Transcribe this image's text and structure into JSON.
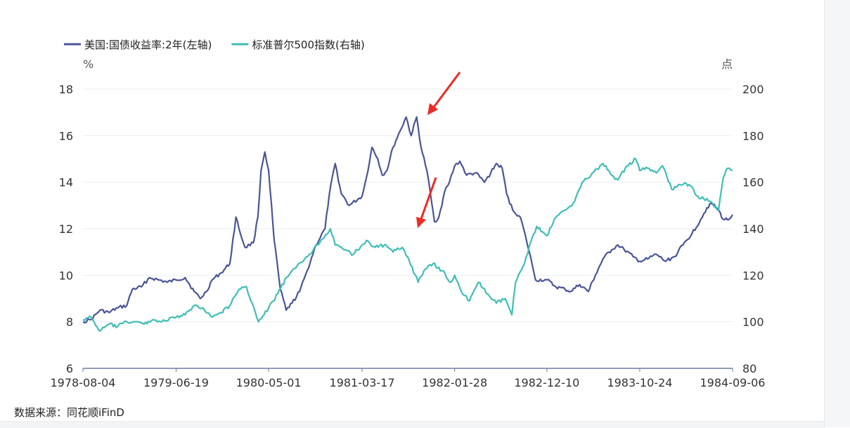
{
  "chart_data": {
    "type": "line",
    "title": "",
    "y_left_unit": "%",
    "y_right_unit": "点",
    "y_left_ticks": [
      "6",
      "8",
      "10",
      "12",
      "14",
      "16",
      "18"
    ],
    "y_right_ticks": [
      "80",
      "100",
      "120",
      "140",
      "160",
      "180",
      "200"
    ],
    "y_left_range": [
      6,
      18
    ],
    "y_right_range": [
      80,
      200
    ],
    "x_tick_labels": [
      "1978-08-04",
      "1979-06-19",
      "1980-05-01",
      "1981-03-17",
      "1982-01-28",
      "1982-12-10",
      "1983-10-24",
      "1984-09-06"
    ],
    "x_range": [
      "1978-08-04",
      "1984-09-06"
    ],
    "grid": "horizontal",
    "legend_position": "top-left",
    "series": [
      {
        "name": "美国:国债收益率:2年(左轴)",
        "axis": "left",
        "color": "#4a5596",
        "points": [
          [
            "1978-08-04",
            8.0
          ],
          [
            "1978-09-01",
            8.1
          ],
          [
            "1978-10-01",
            8.5
          ],
          [
            "1978-11-01",
            8.4
          ],
          [
            "1978-12-01",
            8.6
          ],
          [
            "1979-01-01",
            8.7
          ],
          [
            "1979-01-20",
            9.4
          ],
          [
            "1979-02-20",
            9.5
          ],
          [
            "1979-03-20",
            9.9
          ],
          [
            "1979-04-20",
            9.8
          ],
          [
            "1979-05-20",
            9.7
          ],
          [
            "1979-06-19",
            9.8
          ],
          [
            "1979-07-20",
            9.9
          ],
          [
            "1979-08-20",
            9.3
          ],
          [
            "1979-09-10",
            9.0
          ],
          [
            "1979-10-01",
            9.3
          ],
          [
            "1979-10-20",
            9.8
          ],
          [
            "1979-11-20",
            10.1
          ],
          [
            "1979-12-20",
            10.5
          ],
          [
            "1980-01-10",
            12.5
          ],
          [
            "1980-01-25",
            11.8
          ],
          [
            "1980-02-10",
            11.2
          ],
          [
            "1980-03-10",
            11.4
          ],
          [
            "1980-03-25",
            12.5
          ],
          [
            "1980-04-05",
            14.5
          ],
          [
            "1980-04-18",
            15.3
          ],
          [
            "1980-05-01",
            14.5
          ],
          [
            "1980-05-20",
            11.5
          ],
          [
            "1980-06-10",
            9.4
          ],
          [
            "1980-06-30",
            8.5
          ],
          [
            "1980-07-20",
            8.8
          ],
          [
            "1980-08-15",
            9.3
          ],
          [
            "1980-09-10",
            10.2
          ],
          [
            "1980-10-10",
            11.3
          ],
          [
            "1980-11-10",
            12.0
          ],
          [
            "1980-11-25",
            13.5
          ],
          [
            "1980-12-15",
            14.8
          ],
          [
            "1981-01-05",
            13.5
          ],
          [
            "1981-02-01",
            13.0
          ],
          [
            "1981-03-17",
            13.4
          ],
          [
            "1981-04-01",
            14.2
          ],
          [
            "1981-04-20",
            15.5
          ],
          [
            "1981-05-10",
            15.0
          ],
          [
            "1981-05-25",
            14.3
          ],
          [
            "1981-06-10",
            14.5
          ],
          [
            "1981-07-01",
            15.5
          ],
          [
            "1981-07-25",
            16.2
          ],
          [
            "1981-08-15",
            16.8
          ],
          [
            "1981-09-01",
            16.0
          ],
          [
            "1981-09-20",
            16.8
          ],
          [
            "1981-10-05",
            15.5
          ],
          [
            "1981-10-25",
            14.5
          ],
          [
            "1981-11-20",
            12.3
          ],
          [
            "1981-12-05",
            12.5
          ],
          [
            "1981-12-25",
            13.6
          ],
          [
            "1982-01-10",
            14.0
          ],
          [
            "1982-01-28",
            14.7
          ],
          [
            "1982-02-15",
            14.9
          ],
          [
            "1982-03-10",
            14.3
          ],
          [
            "1982-04-10",
            14.4
          ],
          [
            "1982-05-10",
            14.0
          ],
          [
            "1982-06-01",
            14.4
          ],
          [
            "1982-06-20",
            14.8
          ],
          [
            "1982-07-10",
            14.6
          ],
          [
            "1982-07-25",
            13.5
          ],
          [
            "1982-08-15",
            12.8
          ],
          [
            "1982-09-10",
            12.5
          ],
          [
            "1982-10-01",
            11.5
          ],
          [
            "1982-10-20",
            10.5
          ],
          [
            "1982-11-01",
            9.8
          ],
          [
            "1982-12-10",
            9.8
          ],
          [
            "1983-01-10",
            9.5
          ],
          [
            "1983-02-10",
            9.4
          ],
          [
            "1983-03-01",
            9.3
          ],
          [
            "1983-04-01",
            9.6
          ],
          [
            "1983-05-01",
            9.3
          ],
          [
            "1983-05-25",
            10.0
          ],
          [
            "1983-06-20",
            10.7
          ],
          [
            "1983-07-20",
            11.1
          ],
          [
            "1983-08-10",
            11.3
          ],
          [
            "1983-09-01",
            11.1
          ],
          [
            "1983-10-01",
            10.8
          ],
          [
            "1983-10-24",
            10.6
          ],
          [
            "1983-11-20",
            10.7
          ],
          [
            "1983-12-20",
            10.9
          ],
          [
            "1984-01-20",
            10.6
          ],
          [
            "1984-02-20",
            10.8
          ],
          [
            "1984-03-20",
            11.3
          ],
          [
            "1984-04-20",
            11.8
          ],
          [
            "1984-05-20",
            12.4
          ],
          [
            "1984-06-10",
            12.9
          ],
          [
            "1984-06-25",
            13.1
          ],
          [
            "1984-07-20",
            12.8
          ],
          [
            "1984-08-05",
            12.4
          ],
          [
            "1984-08-25",
            12.4
          ],
          [
            "1984-09-06",
            12.6
          ]
        ]
      },
      {
        "name": "标准普尔500指数(右轴)",
        "axis": "right",
        "color": "#3fbeb6",
        "points": [
          [
            "1978-08-04",
            101
          ],
          [
            "1978-09-01",
            102
          ],
          [
            "1978-10-01",
            96
          ],
          [
            "1978-11-01",
            99
          ],
          [
            "1978-12-01",
            98
          ],
          [
            "1979-01-01",
            100
          ],
          [
            "1979-02-01",
            100
          ],
          [
            "1979-03-01",
            99
          ],
          [
            "1979-04-01",
            101
          ],
          [
            "1979-05-01",
            100
          ],
          [
            "1979-06-19",
            102
          ],
          [
            "1979-07-20",
            103
          ],
          [
            "1979-08-20",
            107
          ],
          [
            "1979-09-20",
            106
          ],
          [
            "1979-10-20",
            102
          ],
          [
            "1979-11-20",
            104
          ],
          [
            "1979-12-20",
            107
          ],
          [
            "1980-01-20",
            114
          ],
          [
            "1980-02-15",
            115
          ],
          [
            "1980-03-27",
            100
          ],
          [
            "1980-04-15",
            103
          ],
          [
            "1980-05-01",
            106
          ],
          [
            "1980-06-01",
            112
          ],
          [
            "1980-07-01",
            119
          ],
          [
            "1980-08-01",
            123
          ],
          [
            "1980-09-01",
            127
          ],
          [
            "1980-10-01",
            131
          ],
          [
            "1980-11-28",
            140
          ],
          [
            "1980-12-15",
            133
          ],
          [
            "1981-01-15",
            131
          ],
          [
            "1981-02-15",
            129
          ],
          [
            "1981-03-17",
            133
          ],
          [
            "1981-04-01",
            135
          ],
          [
            "1981-05-01",
            132
          ],
          [
            "1981-06-01",
            133
          ],
          [
            "1981-07-01",
            130
          ],
          [
            "1981-08-01",
            132
          ],
          [
            "1981-08-20",
            128
          ],
          [
            "1981-09-25",
            117
          ],
          [
            "1981-10-15",
            122
          ],
          [
            "1981-11-15",
            125
          ],
          [
            "1981-12-15",
            122
          ],
          [
            "1982-01-15",
            117
          ],
          [
            "1982-01-28",
            120
          ],
          [
            "1982-02-20",
            113
          ],
          [
            "1982-03-20",
            109
          ],
          [
            "1982-04-20",
            117
          ],
          [
            "1982-05-20",
            112
          ],
          [
            "1982-06-20",
            108
          ],
          [
            "1982-07-20",
            110
          ],
          [
            "1982-08-12",
            103
          ],
          [
            "1982-08-25",
            117
          ],
          [
            "1982-09-20",
            124
          ],
          [
            "1982-10-15",
            134
          ],
          [
            "1982-11-05",
            141
          ],
          [
            "1982-12-10",
            137
          ],
          [
            "1983-01-10",
            145
          ],
          [
            "1983-02-10",
            148
          ],
          [
            "1983-03-10",
            151
          ],
          [
            "1983-04-10",
            160
          ],
          [
            "1983-05-10",
            163
          ],
          [
            "1983-06-20",
            168
          ],
          [
            "1983-07-20",
            163
          ],
          [
            "1983-08-10",
            161
          ],
          [
            "1983-09-10",
            167
          ],
          [
            "1983-10-10",
            170
          ],
          [
            "1983-10-24",
            165
          ],
          [
            "1983-11-20",
            166
          ],
          [
            "1983-12-20",
            164
          ],
          [
            "1984-01-10",
            167
          ],
          [
            "1984-02-10",
            157
          ],
          [
            "1984-03-10",
            159
          ],
          [
            "1984-04-10",
            159
          ],
          [
            "1984-05-10",
            154
          ],
          [
            "1984-06-15",
            152
          ],
          [
            "1984-07-20",
            148
          ],
          [
            "1984-08-05",
            162
          ],
          [
            "1984-08-20",
            166
          ],
          [
            "1984-09-06",
            165
          ]
        ]
      }
    ]
  },
  "source": "数据来源：同花顺iFinD"
}
